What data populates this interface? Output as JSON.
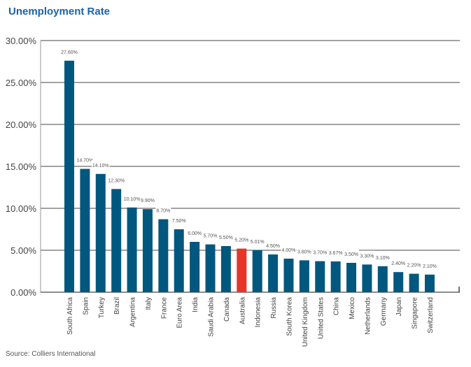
{
  "chart_data": {
    "type": "bar",
    "title": "Unemployment Rate",
    "source": "Source: Colliers International",
    "categories": [
      "South Africa",
      "Spain",
      "Turkey",
      "Brazil",
      "Argentina",
      "Italy",
      "France",
      "Euro Area",
      "India",
      "Saudi Arabia",
      "Canada",
      "Australia",
      "Indonesia",
      "Russia",
      "South Korea",
      "United Kingdom",
      "United States",
      "China",
      "Mexico",
      "Netherlands",
      "Germany",
      "Japan",
      "Singapore",
      "Switzerland"
    ],
    "values": [
      27.6,
      14.7,
      14.1,
      12.3,
      10.1,
      9.9,
      8.7,
      7.5,
      6.0,
      5.7,
      5.5,
      5.2,
      5.01,
      4.5,
      4.0,
      3.8,
      3.7,
      3.67,
      3.5,
      3.3,
      3.1,
      2.4,
      2.2,
      2.1
    ],
    "data_labels": [
      "27.60%",
      "14.70%",
      "14.10%",
      "12.30%",
      "10.10%",
      "9.90%",
      "8.70%",
      "7.50%",
      "6.00%",
      "5.70%",
      "5.50%",
      "5.20%",
      "5.01%",
      "4.50%",
      "4.00%",
      "3.80%",
      "3.70%",
      "3.67%",
      "3.50%",
      "3.30%",
      "3.10%",
      "2.40%",
      "2.20%",
      "2.10%"
    ],
    "yticks": [
      "0.00%",
      "5.00%",
      "10.00%",
      "15.00%",
      "20.00%",
      "25.00%",
      "30.00%"
    ],
    "ylim": [
      0,
      30
    ],
    "grid": true,
    "colors": {
      "default": "#02577e",
      "highlight": "#e8352a",
      "highlight_category": "Australia"
    }
  }
}
